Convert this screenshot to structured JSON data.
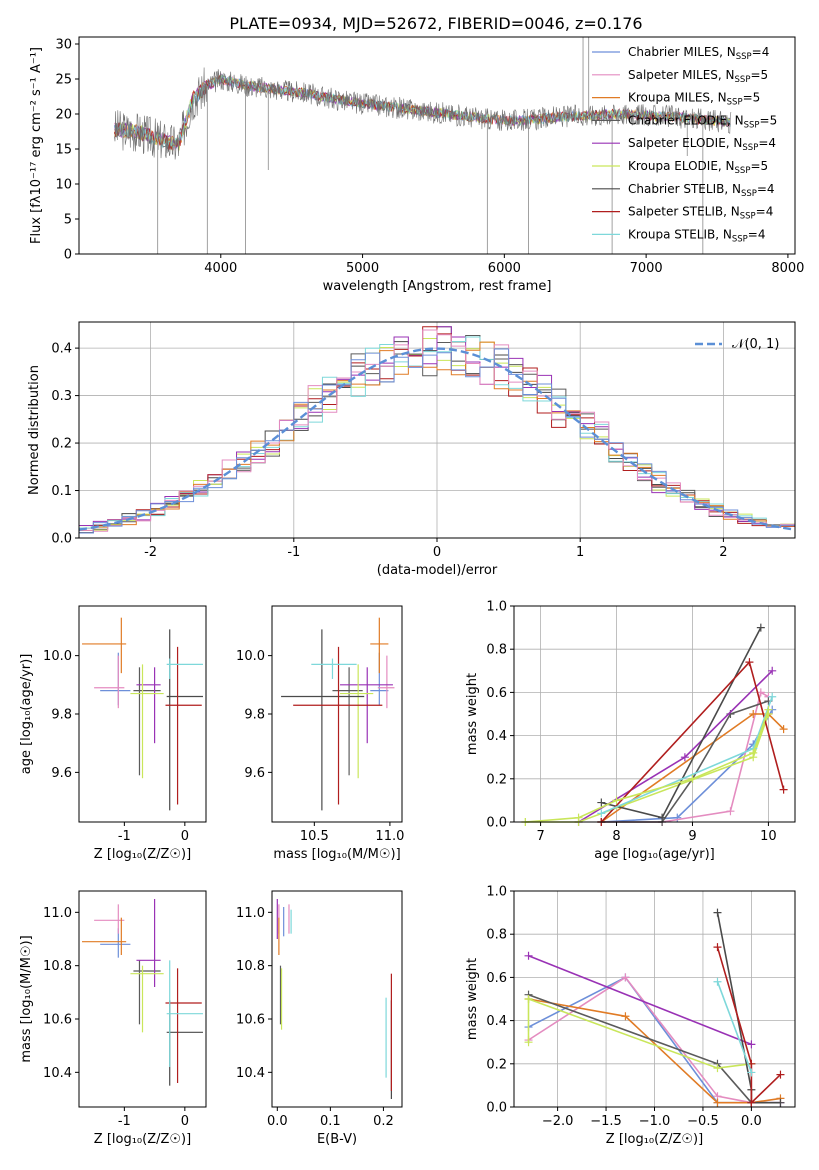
{
  "figure_title": "PLATE=0934, MJD=52672, FIBERID=0046, z=0.176",
  "series": [
    {
      "name": "Chabrier MILES",
      "nssp": "4",
      "color": "#6d8fd9"
    },
    {
      "name": "Salpeter MILES",
      "nssp": "5",
      "color": "#e48cc0"
    },
    {
      "name": "Kroupa MILES",
      "nssp": "5",
      "color": "#e07b25"
    },
    {
      "name": "Chabrier ELODIE",
      "nssp": "5",
      "color": "#5b5b5b"
    },
    {
      "name": "Salpeter ELODIE",
      "nssp": "4",
      "color": "#9932b5"
    },
    {
      "name": "Kroupa ELODIE",
      "nssp": "5",
      "color": "#c9e65a"
    },
    {
      "name": "Chabrier STELIB",
      "nssp": "4",
      "color": "#4a4a4a"
    },
    {
      "name": "Salpeter STELIB",
      "nssp": "4",
      "color": "#b01e1e"
    },
    {
      "name": "Kroupa STELIB",
      "nssp": "4",
      "color": "#7ed8da"
    }
  ],
  "chart_data": [
    {
      "id": "spectrum",
      "type": "line",
      "xlabel": "wavelength [Angstrom, rest frame]",
      "ylabel": "Flux [fλ10⁻¹⁷ erg cm⁻² s⁻¹ A⁻¹]",
      "xlim": [
        3000,
        8050
      ],
      "ylim": [
        0,
        31
      ],
      "xticks": [
        4000,
        5000,
        6000,
        7000,
        8000
      ],
      "yticks": [
        0,
        5,
        10,
        15,
        20,
        25,
        30
      ],
      "legend_position": "top-right",
      "data_continuum": {
        "x": [
          3250,
          3400,
          3550,
          3700,
          3800,
          3900,
          4000,
          4100,
          4200,
          4300,
          4400,
          4500,
          4600,
          4700,
          4800,
          4900,
          5000,
          5200,
          5400,
          5600,
          5800,
          6000,
          6200,
          6400,
          6600,
          6800,
          7000,
          7200,
          7400,
          7600
        ],
        "y": [
          17.8,
          17.5,
          16.5,
          15.5,
          22.0,
          24.0,
          25.0,
          24.5,
          24.0,
          23.8,
          23.5,
          23.2,
          23.0,
          22.5,
          22.2,
          21.8,
          21.5,
          21.0,
          20.5,
          20.0,
          19.5,
          19.0,
          19.2,
          19.6,
          19.8,
          20.0,
          19.8,
          19.6,
          19.2,
          18.8
        ]
      },
      "spikes": [
        {
          "x": 3555,
          "y": 0
        },
        {
          "x": 3905,
          "y": 0
        },
        {
          "x": 4175,
          "y": 0
        },
        {
          "x": 4335,
          "y": 12
        },
        {
          "x": 5880,
          "y": 0
        },
        {
          "x": 6170,
          "y": 0
        },
        {
          "x": 6555,
          "y": 31
        },
        {
          "x": 6595,
          "y": 31
        },
        {
          "x": 6760,
          "y": 0
        },
        {
          "x": 7290,
          "y": 14
        },
        {
          "x": 7400,
          "y": 0
        }
      ]
    },
    {
      "id": "residual-histogram",
      "type": "line",
      "xlabel": "(data-model)/error",
      "ylabel": "Normed distribution",
      "xlim": [
        -2.5,
        2.5
      ],
      "ylim": [
        0,
        0.455
      ],
      "xticks": [
        -2,
        -1,
        0,
        1,
        2
      ],
      "yticks": [
        0,
        0.1,
        0.2,
        0.3,
        0.4
      ],
      "legend": "𝒩(0, 1)",
      "legend_position": "top-right",
      "bins": 50
    },
    {
      "id": "age-vs-Z",
      "type": "scatter",
      "xlabel": "Z [log₁₀(Z/Z☉)]",
      "ylabel": "age  [log₁₀(age/yr)]",
      "xlim": [
        -1.75,
        0.35
      ],
      "ylim": [
        9.43,
        10.17
      ],
      "xticks": [
        -1,
        0
      ],
      "yticks": [
        9.6,
        9.8,
        10.0
      ],
      "points": [
        {
          "s": 0,
          "x": -1.1,
          "y": 9.88,
          "xe": [
            0.3,
            0.2
          ],
          "ye": [
            0.05,
            0.13
          ]
        },
        {
          "s": 1,
          "x": -1.1,
          "y": 9.89,
          "xe": [
            0.4,
            0.1
          ],
          "ye": [
            0.07,
            0.11
          ]
        },
        {
          "s": 2,
          "x": -1.05,
          "y": 10.04,
          "xe": [
            0.65,
            0.08
          ],
          "ye": [
            0.1,
            0.09
          ]
        },
        {
          "s": 3,
          "x": -0.75,
          "y": 9.88,
          "xe": [
            0.1,
            0.35
          ],
          "ye": [
            0.29,
            0.08
          ]
        },
        {
          "s": 4,
          "x": -0.5,
          "y": 9.9,
          "xe": [
            0.3,
            0.1
          ],
          "ye": [
            0.2,
            0.06
          ]
        },
        {
          "s": 5,
          "x": -0.7,
          "y": 9.87,
          "xe": [
            0.2,
            0.35
          ],
          "ye": [
            0.29,
            0.1
          ]
        },
        {
          "s": 6,
          "x": -0.25,
          "y": 9.86,
          "xe": [
            0.05,
            0.55
          ],
          "ye": [
            0.39,
            0.23
          ]
        },
        {
          "s": 7,
          "x": -0.12,
          "y": 9.83,
          "xe": [
            0.2,
            0.4
          ],
          "ye": [
            0.34,
            0.2
          ]
        },
        {
          "s": 8,
          "x": -0.25,
          "y": 9.97,
          "xe": [
            0.05,
            0.55
          ],
          "ye": [
            0.05,
            0.02
          ]
        }
      ]
    },
    {
      "id": "age-vs-mass",
      "type": "scatter",
      "xlabel": "mass [log₁₀(M/M☉)]",
      "ylabel": "",
      "xlim": [
        10.22,
        11.08
      ],
      "ylim": [
        9.43,
        10.17
      ],
      "xticks": [
        10.5,
        11.0
      ],
      "yticks": [
        9.6,
        9.8,
        10.0
      ],
      "points": [
        {
          "s": 0,
          "x": 10.93,
          "y": 9.88,
          "xe": [
            0.06,
            0.06
          ],
          "ye": [
            0.05,
            0.13
          ]
        },
        {
          "s": 1,
          "x": 10.98,
          "y": 9.89,
          "xe": [
            0.06,
            0.05
          ],
          "ye": [
            0.07,
            0.11
          ]
        },
        {
          "s": 2,
          "x": 10.93,
          "y": 10.04,
          "xe": [
            0.06,
            0.06
          ],
          "ye": [
            0.1,
            0.09
          ]
        },
        {
          "s": 3,
          "x": 10.73,
          "y": 9.88,
          "xe": [
            0.11,
            0.09
          ],
          "ye": [
            0.29,
            0.08
          ]
        },
        {
          "s": 4,
          "x": 10.85,
          "y": 9.9,
          "xe": [
            0.18,
            0.17
          ],
          "ye": [
            0.2,
            0.06
          ]
        },
        {
          "s": 5,
          "x": 10.79,
          "y": 9.87,
          "xe": [
            0.12,
            0.1
          ],
          "ye": [
            0.29,
            0.1
          ]
        },
        {
          "s": 6,
          "x": 10.55,
          "y": 9.86,
          "xe": [
            0.27,
            0.28
          ],
          "ye": [
            0.39,
            0.23
          ]
        },
        {
          "s": 7,
          "x": 10.66,
          "y": 9.83,
          "xe": [
            0.3,
            0.29
          ],
          "ye": [
            0.34,
            0.2
          ]
        },
        {
          "s": 8,
          "x": 10.62,
          "y": 9.97,
          "xe": [
            0.14,
            0.16
          ],
          "ye": [
            0.05,
            0.02
          ]
        }
      ]
    },
    {
      "id": "massweight-vs-age",
      "type": "line",
      "xlabel": "age  [log₁₀(age/yr)]",
      "ylabel": "mass weight",
      "xlim": [
        6.65,
        10.35
      ],
      "ylim": [
        0,
        1.0
      ],
      "xticks": [
        7,
        8,
        9,
        10
      ],
      "yticks": [
        0,
        0.2,
        0.4,
        0.6,
        0.8,
        1.0
      ],
      "grid": true,
      "lines": [
        {
          "s": 0,
          "x": [
            7.8,
            8.8,
            9.8,
            10.05
          ],
          "y": [
            0.0,
            0.02,
            0.36,
            0.52
          ]
        },
        {
          "s": 1,
          "x": [
            7.8,
            8.6,
            9.5,
            9.9,
            10.0
          ],
          "y": [
            0.0,
            0.0,
            0.05,
            0.6,
            0.58
          ]
        },
        {
          "s": 2,
          "x": [
            7.8,
            9.8,
            10.0,
            10.2
          ],
          "y": [
            0.0,
            0.5,
            0.5,
            0.43
          ]
        },
        {
          "s": 3,
          "x": [
            7.8,
            8.6,
            9.0,
            9.5,
            10.0
          ],
          "y": [
            0.0,
            0.0,
            0.2,
            0.5,
            0.56
          ]
        },
        {
          "s": 4,
          "x": [
            7.5,
            8.9,
            10.05
          ],
          "y": [
            0.0,
            0.3,
            0.7
          ]
        },
        {
          "s": 5,
          "x": [
            6.8,
            7.5,
            9.8,
            10.0
          ],
          "y": [
            0.0,
            0.0,
            0.3,
            0.5
          ]
        },
        {
          "s": 6,
          "x": [
            7.8,
            8.6,
            9.9
          ],
          "y": [
            0.09,
            0.02,
            0.9
          ]
        },
        {
          "s": 7,
          "x": [
            7.8,
            9.75,
            10.2
          ],
          "y": [
            0.0,
            0.74,
            0.15
          ]
        },
        {
          "s": 8,
          "x": [
            7.8,
            9.8,
            10.05
          ],
          "y": [
            0.04,
            0.34,
            0.58
          ]
        },
        {
          "s": 5,
          "x": [
            6.8,
            7.5,
            8.0,
            9.0,
            9.8,
            10.0
          ],
          "y": [
            0.0,
            0.02,
            0.1,
            0.2,
            0.32,
            0.52
          ]
        }
      ]
    },
    {
      "id": "mass-vs-Z",
      "type": "scatter",
      "xlabel": "Z [log₁₀(Z/Z☉)]",
      "ylabel": "mass [log₁₀(M/M☉)]",
      "xlim": [
        -1.75,
        0.35
      ],
      "ylim": [
        10.27,
        11.08
      ],
      "xticks": [
        -1,
        0
      ],
      "yticks": [
        10.4,
        10.6,
        10.8,
        11.0
      ],
      "points": [
        {
          "s": 0,
          "x": -1.1,
          "y": 10.88,
          "xe": [
            0.3,
            0.2
          ],
          "ye": [
            0.05,
            0.06
          ]
        },
        {
          "s": 1,
          "x": -1.1,
          "y": 10.97,
          "xe": [
            0.4,
            0.1
          ],
          "ye": [
            0.05,
            0.06
          ]
        },
        {
          "s": 2,
          "x": -1.05,
          "y": 10.89,
          "xe": [
            0.65,
            0.08
          ],
          "ye": [
            0.05,
            0.09
          ]
        },
        {
          "s": 3,
          "x": -0.75,
          "y": 10.78,
          "xe": [
            0.1,
            0.35
          ],
          "ye": [
            0.2,
            0.04
          ]
        },
        {
          "s": 4,
          "x": -0.5,
          "y": 10.82,
          "xe": [
            0.3,
            0.1
          ],
          "ye": [
            0.1,
            0.23
          ]
        },
        {
          "s": 5,
          "x": -0.7,
          "y": 10.77,
          "xe": [
            0.2,
            0.35
          ],
          "ye": [
            0.22,
            0.03
          ]
        },
        {
          "s": 6,
          "x": -0.25,
          "y": 10.55,
          "xe": [
            0.05,
            0.55
          ],
          "ye": [
            0.2,
            0.12
          ]
        },
        {
          "s": 7,
          "x": -0.12,
          "y": 10.66,
          "xe": [
            0.2,
            0.4
          ],
          "ye": [
            0.3,
            0.13
          ]
        },
        {
          "s": 8,
          "x": -0.25,
          "y": 10.62,
          "xe": [
            0.05,
            0.55
          ],
          "ye": [
            0.2,
            0.2
          ]
        }
      ]
    },
    {
      "id": "mass-vs-ebv",
      "type": "scatter",
      "xlabel": "E(B-V)",
      "ylabel": "",
      "xlim": [
        -0.01,
        0.235
      ],
      "ylim": [
        10.27,
        11.08
      ],
      "xticks": [
        0.0,
        0.1,
        0.2
      ],
      "yticks": [
        10.4,
        10.6,
        10.8,
        11.0
      ],
      "points": [
        {
          "s": 0,
          "x": 0.012,
          "y": 10.96,
          "ye": [
            0.05,
            0.06
          ]
        },
        {
          "s": 1,
          "x": 0.003,
          "y": 10.97,
          "ye": [
            0.05,
            0.06
          ]
        },
        {
          "s": 2,
          "x": 0.003,
          "y": 10.89,
          "ye": [
            0.05,
            0.09
          ]
        },
        {
          "s": 3,
          "x": 0.006,
          "y": 10.7,
          "ye": [
            0.12,
            0.1
          ]
        },
        {
          "s": 4,
          "x": 0.0,
          "y": 10.95,
          "ye": [
            0.05,
            0.1
          ]
        },
        {
          "s": 5,
          "x": 0.008,
          "y": 10.72,
          "ye": [
            0.16,
            0.07
          ]
        },
        {
          "s": 6,
          "x": 0.215,
          "y": 10.55,
          "ye": [
            0.25,
            0.12
          ]
        },
        {
          "s": 7,
          "x": 0.215,
          "y": 10.55,
          "ye": [
            0.22,
            0.22
          ]
        },
        {
          "s": 8,
          "x": 0.205,
          "y": 10.53,
          "ye": [
            0.15,
            0.15
          ]
        },
        {
          "s": 1,
          "x": 0.022,
          "y": 10.97,
          "ye": [
            0.05,
            0.06
          ]
        },
        {
          "s": 8,
          "x": 0.026,
          "y": 10.97,
          "ye": [
            0.05,
            0.04
          ]
        }
      ]
    },
    {
      "id": "massweight-vs-Z",
      "type": "line",
      "xlabel": "Z [log₁₀(Z/Z☉)]",
      "ylabel": "mass weight",
      "xlim": [
        -2.45,
        0.45
      ],
      "ylim": [
        0,
        1.0
      ],
      "xticks": [
        -2.0,
        -1.5,
        -1.0,
        -0.5,
        0.0
      ],
      "yticks": [
        0,
        0.2,
        0.4,
        0.6,
        0.8,
        1.0
      ],
      "grid": true,
      "lines": [
        {
          "s": 0,
          "x": [
            -2.3,
            -1.3,
            -0.35,
            0.0,
            0.3
          ],
          "y": [
            0.37,
            0.6,
            0.02,
            0.02,
            0.02
          ]
        },
        {
          "s": 1,
          "x": [
            -2.3,
            -1.3,
            -0.35,
            0.0,
            0.3
          ],
          "y": [
            0.31,
            0.6,
            0.05,
            0.02,
            0.02
          ]
        },
        {
          "s": 2,
          "x": [
            -2.3,
            -1.3,
            -0.35,
            0.0,
            0.3
          ],
          "y": [
            0.5,
            0.42,
            0.02,
            0.02,
            0.04
          ]
        },
        {
          "s": 3,
          "x": [
            -2.3,
            -0.35,
            0.0
          ],
          "y": [
            0.52,
            0.2,
            0.02
          ]
        },
        {
          "s": 4,
          "x": [
            -2.3,
            0.0
          ],
          "y": [
            0.7,
            0.29
          ]
        },
        {
          "s": 5,
          "x": [
            -2.3,
            -0.35,
            0.0
          ],
          "y": [
            0.5,
            0.18,
            0.2
          ]
        },
        {
          "s": 6,
          "x": [
            -0.35,
            0.0,
            0.0,
            0.3
          ],
          "y": [
            0.9,
            0.08,
            0.02,
            0.02
          ]
        },
        {
          "s": 7,
          "x": [
            -0.35,
            0.0,
            0.0,
            0.3
          ],
          "y": [
            0.74,
            0.2,
            0.02,
            0.15
          ]
        },
        {
          "s": 8,
          "x": [
            -0.35,
            0.0
          ],
          "y": [
            0.58,
            0.16
          ]
        },
        {
          "s": 5,
          "x": [
            -2.3,
            -2.3
          ],
          "y": [
            0.3,
            0.5
          ]
        }
      ]
    }
  ]
}
